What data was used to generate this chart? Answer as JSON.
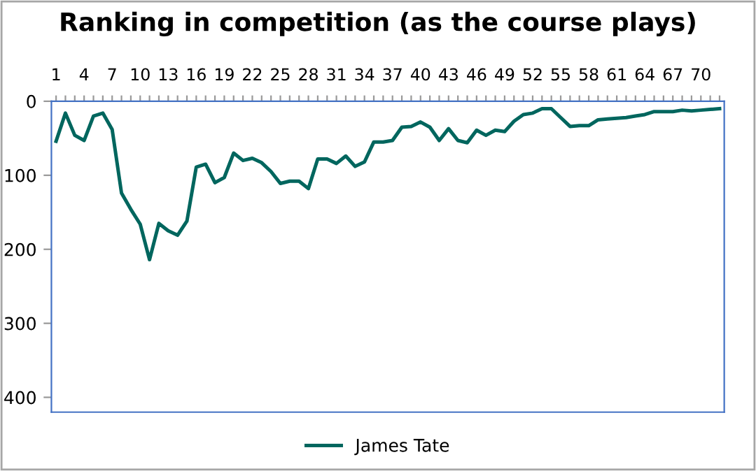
{
  "chart_data": {
    "type": "line",
    "title": "Ranking in competition (as the course plays)",
    "categories": [
      "1",
      null,
      null,
      "4",
      null,
      null,
      "7",
      null,
      null,
      "10",
      null,
      null,
      "13",
      null,
      null,
      "16",
      null,
      null,
      "19",
      null,
      null,
      "22",
      null,
      null,
      "25",
      null,
      null,
      "28",
      null,
      null,
      "31",
      null,
      null,
      "34",
      null,
      null,
      "37",
      null,
      null,
      "40",
      null,
      null,
      "43",
      null,
      null,
      "46",
      null,
      null,
      "49",
      null,
      null,
      "52",
      null,
      null,
      "55",
      null,
      null,
      "58",
      null,
      null,
      "61",
      null,
      null,
      "64",
      null,
      null,
      "67",
      null,
      null,
      "70",
      null,
      null
    ],
    "series": [
      {
        "name": "James Tate",
        "color": "#00665e",
        "values": [
          54,
          16,
          46,
          53,
          20,
          16,
          38,
          124,
          146,
          166,
          214,
          165,
          175,
          181,
          162,
          89,
          85,
          110,
          103,
          70,
          80,
          77,
          83,
          95,
          111,
          108,
          108,
          118,
          78,
          78,
          84,
          74,
          88,
          82,
          55,
          55,
          53,
          35,
          34,
          28,
          35,
          53,
          37,
          53,
          56,
          39,
          46,
          39,
          41,
          27,
          18,
          16,
          10,
          10,
          22,
          34,
          33,
          33,
          25,
          24,
          23,
          22,
          20,
          18,
          14,
          14,
          14,
          12,
          13,
          12,
          11,
          10
        ]
      }
    ],
    "ylim": [
      420,
      0
    ],
    "yticks": [
      0,
      100,
      200,
      300,
      400
    ],
    "grid": false,
    "legend": "bottom",
    "marker": "none",
    "line_style": "solid"
  }
}
